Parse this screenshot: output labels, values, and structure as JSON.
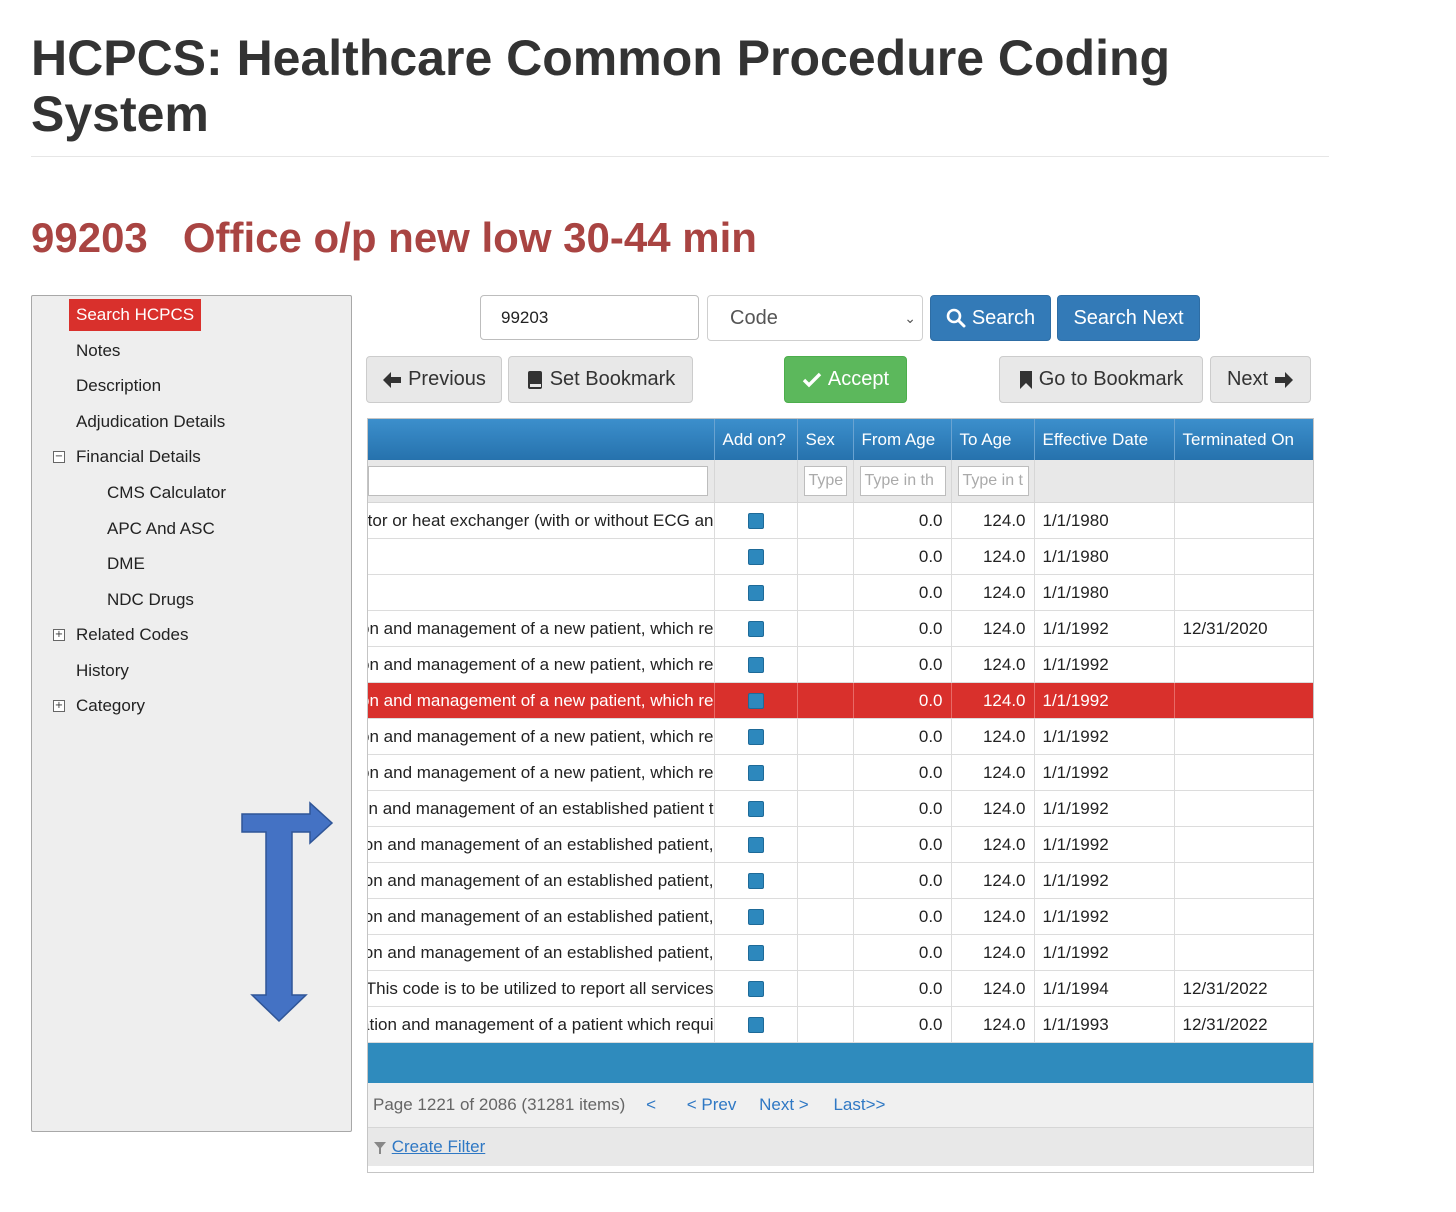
{
  "page": {
    "title": "HCPCS: Healthcare Common Procedure Coding System",
    "code": "99203",
    "code_description": "Office o/p new low 30-44 min"
  },
  "sidebar": {
    "items": [
      {
        "label": "Search HCPCS",
        "selected": true
      },
      {
        "label": "Notes"
      },
      {
        "label": "Description"
      },
      {
        "label": "Adjudication Details"
      },
      {
        "label": "Financial Details",
        "toggle": "⊟"
      },
      {
        "label": "CMS Calculator"
      },
      {
        "label": "APC And ASC"
      },
      {
        "label": "DME"
      },
      {
        "label": "NDC Drugs"
      },
      {
        "label": "Related Codes",
        "toggle": "⊞"
      },
      {
        "label": "History"
      },
      {
        "label": "Category",
        "toggle": "⊞"
      }
    ]
  },
  "search": {
    "value": "99203",
    "type_selected": "Code",
    "search_label": "Search",
    "search_next_label": "Search Next"
  },
  "toolbar": {
    "previous_label": "Previous",
    "set_bookmark_label": "Set Bookmark",
    "accept_label": "Accept",
    "go_to_bookmark_label": "Go to Bookmark",
    "next_label": "Next"
  },
  "grid": {
    "columns": [
      "Add on?",
      "Sex",
      "From Age",
      "To Age",
      "Effective Date",
      "Terminated On"
    ],
    "filter_placeholders": {
      "sex": "Type",
      "from_age": "Type in th",
      "to_age": "Type in t"
    },
    "rows": [
      {
        "desc": "ator or heat exchanger (with or without ECG an",
        "from_age": "0.0",
        "to_age": "124.0",
        "effective": "1/1/1980",
        "terminated": ""
      },
      {
        "desc": "",
        "from_age": "0.0",
        "to_age": "124.0",
        "effective": "1/1/1980",
        "terminated": ""
      },
      {
        "desc": "",
        "from_age": "0.0",
        "to_age": "124.0",
        "effective": "1/1/1980",
        "terminated": ""
      },
      {
        "desc": "on and management of a new patient, which re",
        "from_age": "0.0",
        "to_age": "124.0",
        "effective": "1/1/1992",
        "terminated": "12/31/2020"
      },
      {
        "desc": "on and management of a new patient, which re",
        "from_age": "0.0",
        "to_age": "124.0",
        "effective": "1/1/1992",
        "terminated": ""
      },
      {
        "desc": "on and management of a new patient, which re",
        "from_age": "0.0",
        "to_age": "124.0",
        "effective": "1/1/1992",
        "terminated": "",
        "selected": true
      },
      {
        "desc": "on and management of a new patient, which re",
        "from_age": "0.0",
        "to_age": "124.0",
        "effective": "1/1/1992",
        "terminated": ""
      },
      {
        "desc": "on and management of a new patient, which re",
        "from_age": "0.0",
        "to_age": "124.0",
        "effective": "1/1/1992",
        "terminated": ""
      },
      {
        "desc": "on and management of an established patient t",
        "from_age": "0.0",
        "to_age": "124.0",
        "effective": "1/1/1992",
        "terminated": ""
      },
      {
        "desc": "on and management of an established patient,",
        "from_age": "0.0",
        "to_age": "124.0",
        "effective": "1/1/1992",
        "terminated": ""
      },
      {
        "desc": "on and management of an established patient,",
        "from_age": "0.0",
        "to_age": "124.0",
        "effective": "1/1/1992",
        "terminated": ""
      },
      {
        "desc": "on and management of an established patient,",
        "from_age": "0.0",
        "to_age": "124.0",
        "effective": "1/1/1992",
        "terminated": ""
      },
      {
        "desc": "on and management of an established patient,",
        "from_age": "0.0",
        "to_age": "124.0",
        "effective": "1/1/1992",
        "terminated": ""
      },
      {
        "desc": "(This code is to be utilized to report all services",
        "from_age": "0.0",
        "to_age": "124.0",
        "effective": "1/1/1994",
        "terminated": "12/31/2022"
      },
      {
        "desc": "ation and management of a patient which requi",
        "from_age": "0.0",
        "to_age": "124.0",
        "effective": "1/1/1993",
        "terminated": "12/31/2022"
      }
    ]
  },
  "pager": {
    "info": "Page 1221 of 2086 (31281 items)",
    "first": "<",
    "prev": "< Prev",
    "next": "Next >",
    "last": "Last>>"
  },
  "filter": {
    "create_label": "Create Filter"
  },
  "colors": {
    "accent_red": "#d9302c",
    "heading_red": "#a94442",
    "header_blue": "#2f80c0",
    "arrow_blue": "#4472c4"
  }
}
